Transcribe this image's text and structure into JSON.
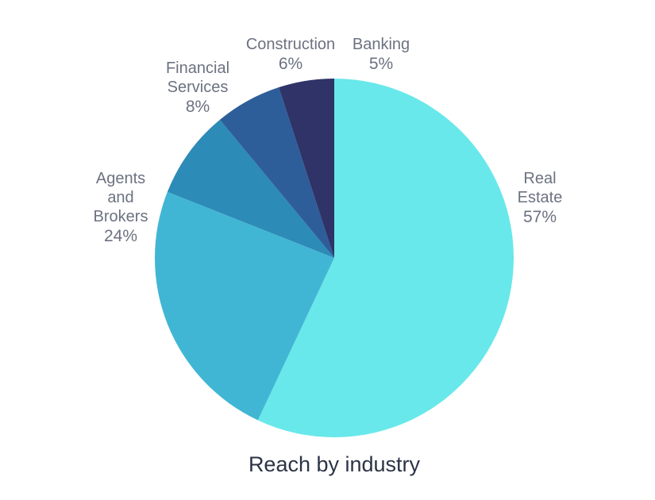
{
  "chart_data": {
    "type": "pie",
    "title": "Reach by industry",
    "start_angle_deg": 0,
    "direction": "clockwise",
    "slices": [
      {
        "name": "Real Estate",
        "label_lines": [
          "Real",
          "Estate"
        ],
        "value": 57,
        "display": "57%",
        "color": "#68e8ea"
      },
      {
        "name": "Agents and Brokers",
        "label_lines": [
          "Agents",
          "and",
          "Brokers"
        ],
        "value": 24,
        "display": "24%",
        "color": "#41b6d4"
      },
      {
        "name": "Financial Services",
        "label_lines": [
          "Financial",
          "Services"
        ],
        "value": 8,
        "display": "8%",
        "color": "#2c8bb7"
      },
      {
        "name": "Construction",
        "label_lines": [
          "Construction"
        ],
        "value": 6,
        "display": "6%",
        "color": "#2e5e99"
      },
      {
        "name": "Banking",
        "label_lines": [
          "Banking"
        ],
        "value": 5,
        "display": "5%",
        "color": "#2f3368"
      }
    ]
  }
}
